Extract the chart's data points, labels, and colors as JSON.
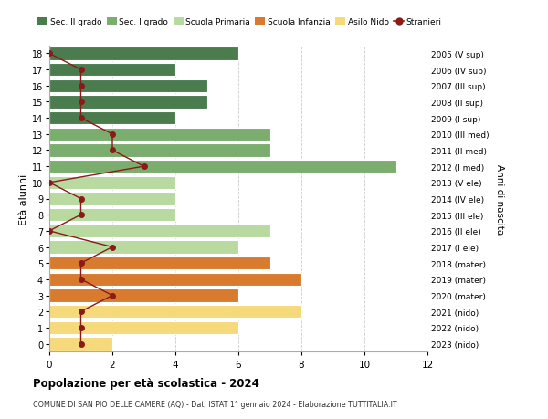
{
  "ages": [
    18,
    17,
    16,
    15,
    14,
    13,
    12,
    11,
    10,
    9,
    8,
    7,
    6,
    5,
    4,
    3,
    2,
    1,
    0
  ],
  "right_labels": [
    "2005 (V sup)",
    "2006 (IV sup)",
    "2007 (III sup)",
    "2008 (II sup)",
    "2009 (I sup)",
    "2010 (III med)",
    "2011 (II med)",
    "2012 (I med)",
    "2013 (V ele)",
    "2014 (IV ele)",
    "2015 (III ele)",
    "2016 (II ele)",
    "2017 (I ele)",
    "2018 (mater)",
    "2019 (mater)",
    "2020 (mater)",
    "2021 (nido)",
    "2022 (nido)",
    "2023 (nido)"
  ],
  "bar_values": [
    6,
    4,
    5,
    5,
    4,
    7,
    7,
    11,
    4,
    4,
    4,
    7,
    6,
    7,
    8,
    6,
    8,
    6,
    2
  ],
  "bar_colors": [
    "#4a7c4e",
    "#4a7c4e",
    "#4a7c4e",
    "#4a7c4e",
    "#4a7c4e",
    "#7aad6e",
    "#7aad6e",
    "#7aad6e",
    "#b8d9a0",
    "#b8d9a0",
    "#b8d9a0",
    "#b8d9a0",
    "#b8d9a0",
    "#d97b2e",
    "#d97b2e",
    "#d97b2e",
    "#f5d97a",
    "#f5d97a",
    "#f5d97a"
  ],
  "stranieri_values": [
    0,
    1,
    1,
    1,
    1,
    2,
    2,
    3,
    0,
    1,
    1,
    0,
    2,
    1,
    1,
    2,
    1,
    1,
    1
  ],
  "title": "Popolazione per età scolastica - 2024",
  "subtitle": "COMUNE DI SAN PIO DELLE CAMERE (AQ) - Dati ISTAT 1° gennaio 2024 - Elaborazione TUTTITALIA.IT",
  "ylabel": "Età alunni",
  "right_ylabel": "Anni di nascita",
  "xlim": [
    0,
    12
  ],
  "xticks": [
    0,
    2,
    4,
    6,
    8,
    10,
    12
  ],
  "legend_items": [
    "Sec. II grado",
    "Sec. I grado",
    "Scuola Primaria",
    "Scuola Infanzia",
    "Asilo Nido",
    "Stranieri"
  ],
  "legend_colors": [
    "#4a7c4e",
    "#7aad6e",
    "#b8d9a0",
    "#d97b2e",
    "#f5d97a",
    "#8b1a1a"
  ],
  "bg_color": "#ffffff",
  "grid_color": "#cccccc",
  "bar_height": 0.82
}
